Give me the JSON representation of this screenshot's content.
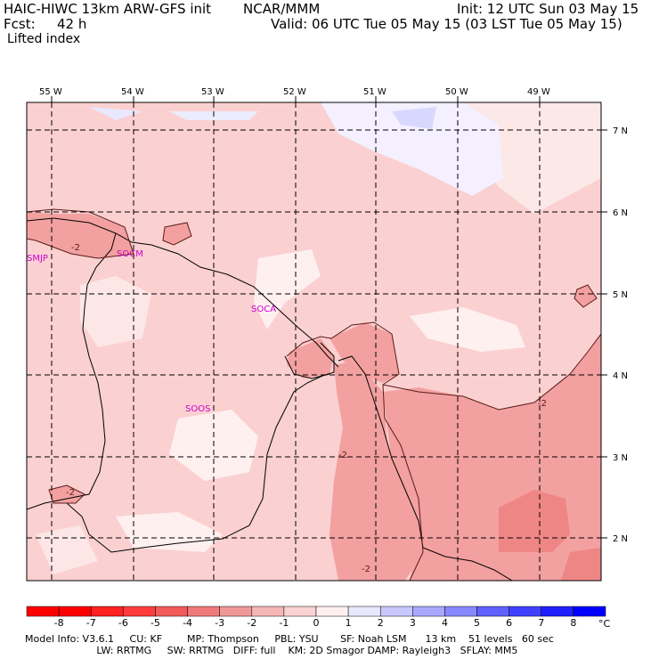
{
  "header": {
    "model_line": "HAIC-HIWC 13km ARW-GFS init",
    "org": "NCAR/MMM",
    "init": "Init: 12 UTC Sun 03 May 15",
    "fcst_label": "Fcst:",
    "fcst_value": "42 h",
    "valid": "Valid: 06 UTC Tue 05 May 15 (03 LST Tue 05 May 15)",
    "field": "Lifted index"
  },
  "map": {
    "lon_labels": [
      "55 W",
      "54 W",
      "53 W",
      "52 W",
      "51 W",
      "50 W",
      "49 W"
    ],
    "lat_labels": [
      "7 N",
      "6 N",
      "5 N",
      "4 N",
      "3 N",
      "2 N"
    ],
    "stations": [
      "SMJP",
      "SOCM",
      "SOCA",
      "SOOS"
    ],
    "contour_labels": [
      "-2",
      "-2",
      "-2",
      "-2",
      "-2"
    ]
  },
  "colorbar": {
    "ticks": [
      "-8",
      "-7",
      "-6",
      "-5",
      "-4",
      "-3",
      "-2",
      "-1",
      "0",
      "1",
      "2",
      "3",
      "4",
      "5",
      "6",
      "7",
      "8"
    ],
    "unit": "°C",
    "colors": [
      "#ff0000",
      "#ff2020",
      "#ff3c3c",
      "#f25a5a",
      "#f07a7a",
      "#f09898",
      "#f5b6b6",
      "#f9d2d2",
      "#fff0f0",
      "#e8e8ff",
      "#c8c8ff",
      "#a8a8ff",
      "#8888ff",
      "#6060ff",
      "#4040ff",
      "#2020ff",
      "#0000ff"
    ]
  },
  "footer": {
    "line1": "Model Info: V3.6.1     CU: KF        MP: Thompson     PBL: YSU       SF: Noah LSM      13 km    51 levels   60 sec",
    "line2": "                       LW: RRTMG     SW: RRTMG   DIFF: full    KM: 2D Smagor DAMP: Rayleigh3   SFLAY: MM5"
  }
}
